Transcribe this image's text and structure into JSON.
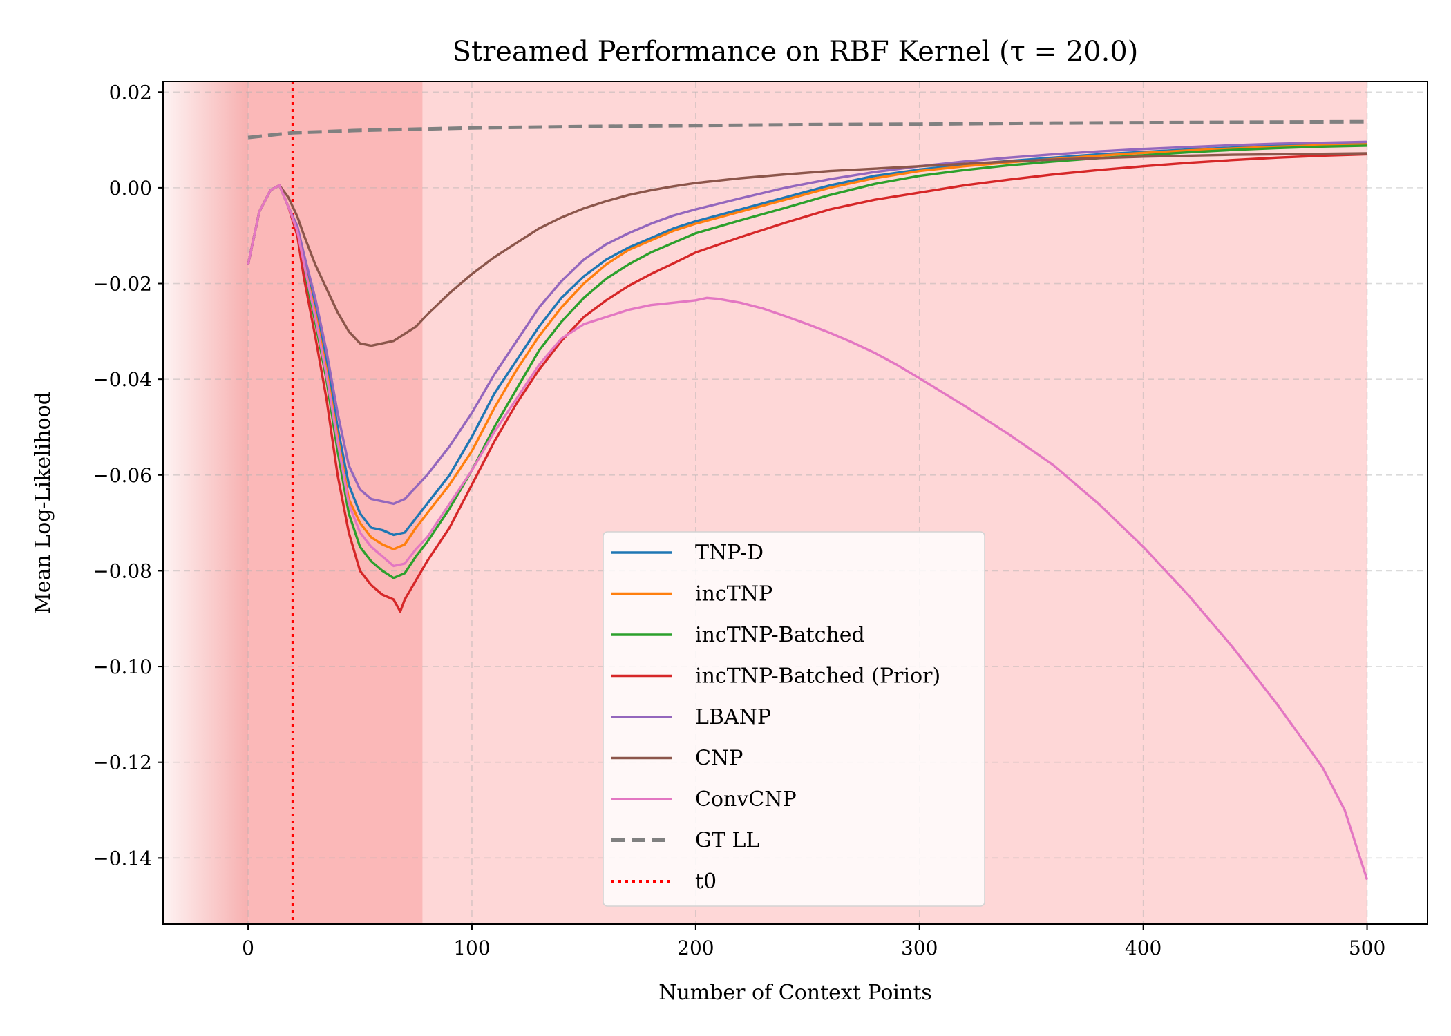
{
  "chart_data": {
    "type": "line",
    "title": "Streamed Performance on RBF Kernel (τ = 20.0)",
    "xlabel": "Number of Context Points",
    "ylabel": "Mean Log-Likelihood",
    "xlim": [
      -38,
      527
    ],
    "ylim": [
      -0.1538,
      0.0222
    ],
    "x_ticks": [
      0,
      100,
      200,
      300,
      400,
      500
    ],
    "y_ticks": [
      0.02,
      0.0,
      -0.02,
      -0.04,
      -0.06,
      -0.08,
      -0.1,
      -0.12,
      -0.14
    ],
    "x_tick_labels": [
      "0",
      "100",
      "200",
      "300",
      "400",
      "500"
    ],
    "y_tick_labels": [
      "0.02",
      "0.00",
      "−0.02",
      "−0.04",
      "−0.06",
      "−0.08",
      "−0.10",
      "−0.12",
      "−0.14"
    ],
    "grid": true,
    "legend_position": "lower-center",
    "shaded_regions": [
      {
        "x": [
          -38,
          0
        ],
        "color": "#f7b0b0",
        "style": "fade-from-left"
      },
      {
        "x": [
          0,
          78
        ],
        "color": "#fbb8b8"
      },
      {
        "x": [
          78,
          500
        ],
        "color": "#fed7d7"
      }
    ],
    "vertical_lines": [
      {
        "x": 20,
        "name": "t0",
        "color": "#ff0000",
        "style": "dotted"
      }
    ],
    "series": [
      {
        "name": "TNP-D",
        "color": "#1f77b4",
        "style": "solid",
        "x": [
          0,
          5,
          10,
          14,
          18,
          22,
          25,
          30,
          35,
          40,
          45,
          50,
          55,
          60,
          65,
          70,
          75,
          80,
          90,
          100,
          110,
          120,
          130,
          140,
          150,
          160,
          170,
          180,
          190,
          200,
          220,
          240,
          260,
          280,
          300,
          320,
          340,
          360,
          380,
          400,
          420,
          440,
          460,
          480,
          500
        ],
        "y": [
          -0.016,
          -0.005,
          -0.0005,
          0.0005,
          -0.004,
          -0.009,
          -0.015,
          -0.025,
          -0.036,
          -0.05,
          -0.062,
          -0.068,
          -0.071,
          -0.0715,
          -0.0725,
          -0.072,
          -0.069,
          -0.066,
          -0.06,
          -0.052,
          -0.043,
          -0.036,
          -0.029,
          -0.023,
          -0.0185,
          -0.015,
          -0.0125,
          -0.0105,
          -0.0085,
          -0.007,
          -0.0045,
          -0.002,
          0.0005,
          0.0025,
          0.0038,
          0.0048,
          0.0056,
          0.0063,
          0.007,
          0.0075,
          0.008,
          0.0084,
          0.0088,
          0.009,
          0.0093
        ]
      },
      {
        "name": "incTNP",
        "color": "#ff7f0e",
        "style": "solid",
        "x": [
          0,
          5,
          10,
          14,
          18,
          22,
          25,
          30,
          35,
          40,
          45,
          50,
          55,
          60,
          65,
          70,
          75,
          80,
          90,
          100,
          110,
          120,
          130,
          140,
          150,
          160,
          170,
          180,
          190,
          200,
          220,
          240,
          260,
          280,
          300,
          320,
          340,
          360,
          380,
          400,
          420,
          440,
          460,
          480,
          500
        ],
        "y": [
          -0.016,
          -0.005,
          -0.0005,
          0.0005,
          -0.004,
          -0.009,
          -0.016,
          -0.026,
          -0.038,
          -0.052,
          -0.065,
          -0.07,
          -0.073,
          -0.0745,
          -0.0755,
          -0.0745,
          -0.071,
          -0.068,
          -0.062,
          -0.055,
          -0.046,
          -0.038,
          -0.031,
          -0.025,
          -0.02,
          -0.016,
          -0.013,
          -0.011,
          -0.009,
          -0.0075,
          -0.005,
          -0.0025,
          0.0,
          0.002,
          0.0035,
          0.0045,
          0.0053,
          0.006,
          0.0067,
          0.0073,
          0.0078,
          0.0082,
          0.0086,
          0.0089,
          0.0091
        ]
      },
      {
        "name": "incTNP-Batched",
        "color": "#2ca02c",
        "style": "solid",
        "x": [
          0,
          5,
          10,
          14,
          18,
          22,
          25,
          30,
          35,
          40,
          45,
          50,
          55,
          60,
          65,
          70,
          75,
          80,
          90,
          100,
          110,
          120,
          130,
          140,
          150,
          160,
          170,
          180,
          190,
          200,
          220,
          240,
          260,
          280,
          300,
          320,
          340,
          360,
          380,
          400,
          420,
          440,
          460,
          480,
          500
        ],
        "y": [
          -0.016,
          -0.005,
          -0.0005,
          0.0005,
          -0.004,
          -0.009,
          -0.017,
          -0.028,
          -0.04,
          -0.055,
          -0.068,
          -0.075,
          -0.078,
          -0.08,
          -0.0815,
          -0.0805,
          -0.077,
          -0.074,
          -0.067,
          -0.059,
          -0.05,
          -0.042,
          -0.034,
          -0.028,
          -0.023,
          -0.019,
          -0.016,
          -0.0135,
          -0.0115,
          -0.0095,
          -0.0068,
          -0.0042,
          -0.0015,
          0.0008,
          0.0025,
          0.0037,
          0.0047,
          0.0055,
          0.0062,
          0.0068,
          0.0074,
          0.0079,
          0.0083,
          0.0086,
          0.0088
        ]
      },
      {
        "name": "incTNP-Batched (Prior)",
        "color": "#d62728",
        "style": "solid",
        "x": [
          0,
          5,
          10,
          14,
          18,
          22,
          25,
          30,
          35,
          40,
          45,
          50,
          55,
          60,
          65,
          68,
          70,
          75,
          80,
          90,
          100,
          110,
          120,
          130,
          140,
          150,
          160,
          170,
          180,
          190,
          200,
          220,
          240,
          260,
          280,
          300,
          320,
          340,
          360,
          380,
          400,
          420,
          440,
          460,
          480,
          500
        ],
        "y": [
          -0.016,
          -0.005,
          -0.0005,
          0.0005,
          -0.004,
          -0.01,
          -0.019,
          -0.031,
          -0.044,
          -0.06,
          -0.072,
          -0.08,
          -0.083,
          -0.085,
          -0.086,
          -0.0885,
          -0.086,
          -0.082,
          -0.078,
          -0.071,
          -0.062,
          -0.053,
          -0.045,
          -0.038,
          -0.032,
          -0.027,
          -0.0235,
          -0.0205,
          -0.018,
          -0.0158,
          -0.0135,
          -0.0103,
          -0.0073,
          -0.0045,
          -0.0025,
          -0.001,
          0.0005,
          0.0017,
          0.0028,
          0.0037,
          0.0045,
          0.0052,
          0.0058,
          0.0063,
          0.0067,
          0.007
        ]
      },
      {
        "name": "LBANP",
        "color": "#9467bd",
        "style": "solid",
        "x": [
          0,
          5,
          10,
          14,
          18,
          22,
          25,
          30,
          35,
          40,
          45,
          50,
          55,
          60,
          65,
          70,
          75,
          80,
          90,
          100,
          110,
          120,
          130,
          140,
          150,
          160,
          170,
          180,
          190,
          200,
          220,
          240,
          260,
          280,
          300,
          320,
          340,
          360,
          380,
          400,
          420,
          440,
          460,
          480,
          500
        ],
        "y": [
          -0.016,
          -0.005,
          -0.0005,
          0.0005,
          -0.004,
          -0.008,
          -0.014,
          -0.023,
          -0.034,
          -0.047,
          -0.058,
          -0.063,
          -0.065,
          -0.0655,
          -0.066,
          -0.065,
          -0.0625,
          -0.06,
          -0.054,
          -0.047,
          -0.039,
          -0.032,
          -0.025,
          -0.0195,
          -0.015,
          -0.0118,
          -0.0095,
          -0.0075,
          -0.0058,
          -0.0045,
          -0.0022,
          0.0,
          0.0018,
          0.0033,
          0.0045,
          0.0055,
          0.0063,
          0.007,
          0.0076,
          0.0081,
          0.0085,
          0.0089,
          0.0092,
          0.0094,
          0.0096
        ]
      },
      {
        "name": "CNP",
        "color": "#8c564b",
        "style": "solid",
        "x": [
          0,
          5,
          10,
          14,
          18,
          22,
          25,
          30,
          35,
          40,
          45,
          50,
          55,
          60,
          65,
          70,
          75,
          80,
          90,
          100,
          110,
          120,
          130,
          140,
          150,
          160,
          170,
          180,
          190,
          200,
          220,
          240,
          260,
          280,
          300,
          320,
          340,
          360,
          380,
          400,
          420,
          440,
          460,
          480,
          500
        ],
        "y": [
          -0.016,
          -0.005,
          -0.0005,
          0.0005,
          -0.002,
          -0.006,
          -0.01,
          -0.016,
          -0.021,
          -0.026,
          -0.03,
          -0.0325,
          -0.033,
          -0.0325,
          -0.032,
          -0.0305,
          -0.029,
          -0.0265,
          -0.022,
          -0.018,
          -0.0145,
          -0.0115,
          -0.0085,
          -0.0062,
          -0.0043,
          -0.0028,
          -0.0015,
          -0.0005,
          0.0003,
          0.001,
          0.002,
          0.0028,
          0.0035,
          0.004,
          0.0045,
          0.005,
          0.0055,
          0.0059,
          0.0062,
          0.0065,
          0.0067,
          0.0069,
          0.007,
          0.0071,
          0.0072
        ]
      },
      {
        "name": "ConvCNP",
        "color": "#e377c2",
        "style": "solid",
        "x": [
          0,
          5,
          10,
          14,
          18,
          22,
          25,
          30,
          35,
          40,
          45,
          50,
          55,
          60,
          65,
          70,
          75,
          80,
          90,
          100,
          110,
          120,
          130,
          140,
          150,
          160,
          170,
          180,
          190,
          200,
          205,
          210,
          220,
          230,
          240,
          250,
          260,
          270,
          280,
          290,
          300,
          320,
          340,
          360,
          380,
          400,
          420,
          440,
          460,
          480,
          490,
          500
        ],
        "y": [
          -0.016,
          -0.005,
          -0.0005,
          0.0005,
          -0.004,
          -0.009,
          -0.016,
          -0.027,
          -0.039,
          -0.053,
          -0.066,
          -0.072,
          -0.075,
          -0.077,
          -0.079,
          -0.0785,
          -0.0755,
          -0.073,
          -0.066,
          -0.059,
          -0.051,
          -0.044,
          -0.037,
          -0.0315,
          -0.0285,
          -0.027,
          -0.0255,
          -0.0245,
          -0.024,
          -0.0235,
          -0.023,
          -0.0232,
          -0.024,
          -0.0252,
          -0.0268,
          -0.0285,
          -0.0303,
          -0.0323,
          -0.0345,
          -0.037,
          -0.0398,
          -0.0455,
          -0.0515,
          -0.058,
          -0.066,
          -0.075,
          -0.085,
          -0.096,
          -0.108,
          -0.121,
          -0.13,
          -0.1445
        ]
      },
      {
        "name": "GT LL",
        "color": "#808080",
        "style": "dashed",
        "x": [
          0,
          20,
          50,
          100,
          150,
          200,
          250,
          300,
          350,
          400,
          450,
          500
        ],
        "y": [
          0.0105,
          0.0115,
          0.012,
          0.0125,
          0.0128,
          0.013,
          0.0132,
          0.0133,
          0.0135,
          0.0136,
          0.0137,
          0.0138
        ]
      }
    ],
    "legend": [
      "TNP-D",
      "incTNP",
      "incTNP-Batched",
      "incTNP-Batched (Prior)",
      "LBANP",
      "CNP",
      "ConvCNP",
      "GT LL",
      "t0"
    ]
  }
}
